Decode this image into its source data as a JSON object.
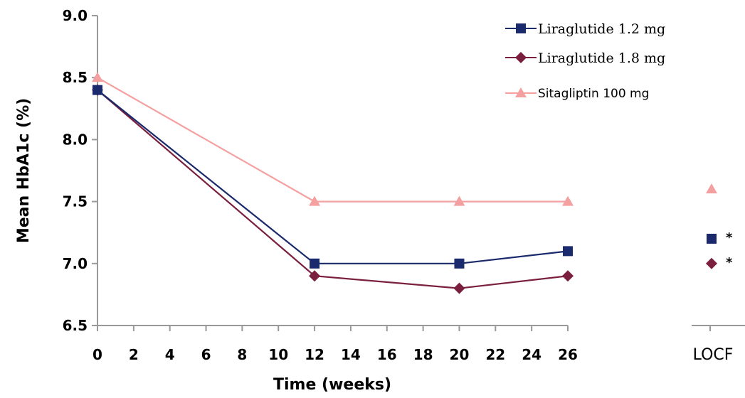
{
  "chart_data": {
    "type": "line",
    "xlabel": "Time (weeks)",
    "ylabel": "Mean HbA1c (%)",
    "ylim": [
      6.5,
      9.0
    ],
    "xlim": [
      0,
      26
    ],
    "x_ticks": [
      "0",
      "2",
      "4",
      "6",
      "8",
      "10",
      "12",
      "14",
      "16",
      "18",
      "20",
      "22",
      "24",
      "26"
    ],
    "y_ticks": [
      "6.5",
      "7.0",
      "7.5",
      "8.0",
      "8.5",
      "9.0"
    ],
    "grid": false,
    "legend_position": "top-right",
    "series": [
      {
        "name": "Liraglutide 1.2 mg",
        "color": "#1a2a6c",
        "marker": "square",
        "x": [
          0,
          12,
          20,
          26
        ],
        "y": [
          8.4,
          7.0,
          7.0,
          7.1
        ],
        "locf": 7.2,
        "locf_annotation": "*"
      },
      {
        "name": "Liraglutide 1.8 mg",
        "color": "#7a1f3d",
        "marker": "diamond",
        "x": [
          0,
          12,
          20,
          26
        ],
        "y": [
          8.4,
          6.9,
          6.8,
          6.9
        ],
        "locf": 7.0,
        "locf_annotation": "*"
      },
      {
        "name": "Sitagliptin 100 mg",
        "color": "#f4a0a0",
        "marker": "triangle",
        "x": [
          0,
          12,
          20,
          26
        ],
        "y": [
          8.5,
          7.5,
          7.5,
          7.5
        ],
        "locf": 7.6,
        "locf_annotation": ""
      }
    ],
    "locf_label": "LOCF"
  }
}
